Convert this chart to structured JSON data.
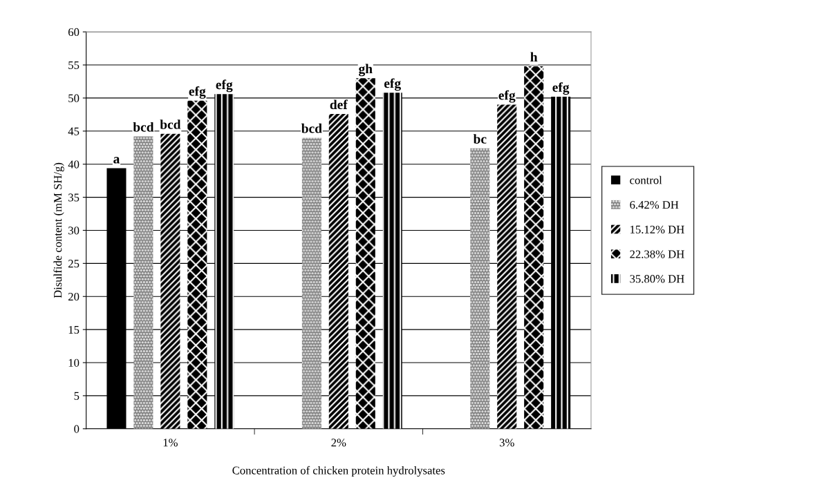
{
  "chart_data": {
    "type": "bar",
    "xlabel": "Concentration of chicken protein hydrolysates",
    "ylabel": "Disulfide content (mM SH/g)",
    "categories": [
      "1%",
      "2%",
      "3%"
    ],
    "series": [
      {
        "name": "control",
        "color": "#000000",
        "values": [
          39.4,
          null,
          null
        ],
        "value_labels": [
          "a",
          null,
          null
        ]
      },
      {
        "name": "6.42% DH",
        "color": "#808080",
        "values": [
          44.2,
          44.0,
          42.4
        ],
        "value_labels": [
          "bcd",
          "bcd",
          "bc"
        ]
      },
      {
        "name": "15.12% DH",
        "color": "#000000",
        "values": [
          44.6,
          47.6,
          49.0
        ],
        "value_labels": [
          "bcd",
          "def",
          "efg"
        ]
      },
      {
        "name": "22.38% DH",
        "color": "#000000",
        "values": [
          49.6,
          53.0,
          54.8
        ],
        "value_labels": [
          "efg",
          "gh",
          "h"
        ]
      },
      {
        "name": "35.80% DH",
        "color": "#000000",
        "values": [
          50.6,
          50.8,
          50.2
        ],
        "value_labels": [
          "efg",
          "efg",
          "efg"
        ]
      }
    ],
    "ylim": [
      0,
      60
    ],
    "yticks": [
      0,
      5,
      10,
      15,
      20,
      25,
      30,
      35,
      40,
      45,
      50,
      55,
      60
    ],
    "grid": "y",
    "legend": "right"
  }
}
